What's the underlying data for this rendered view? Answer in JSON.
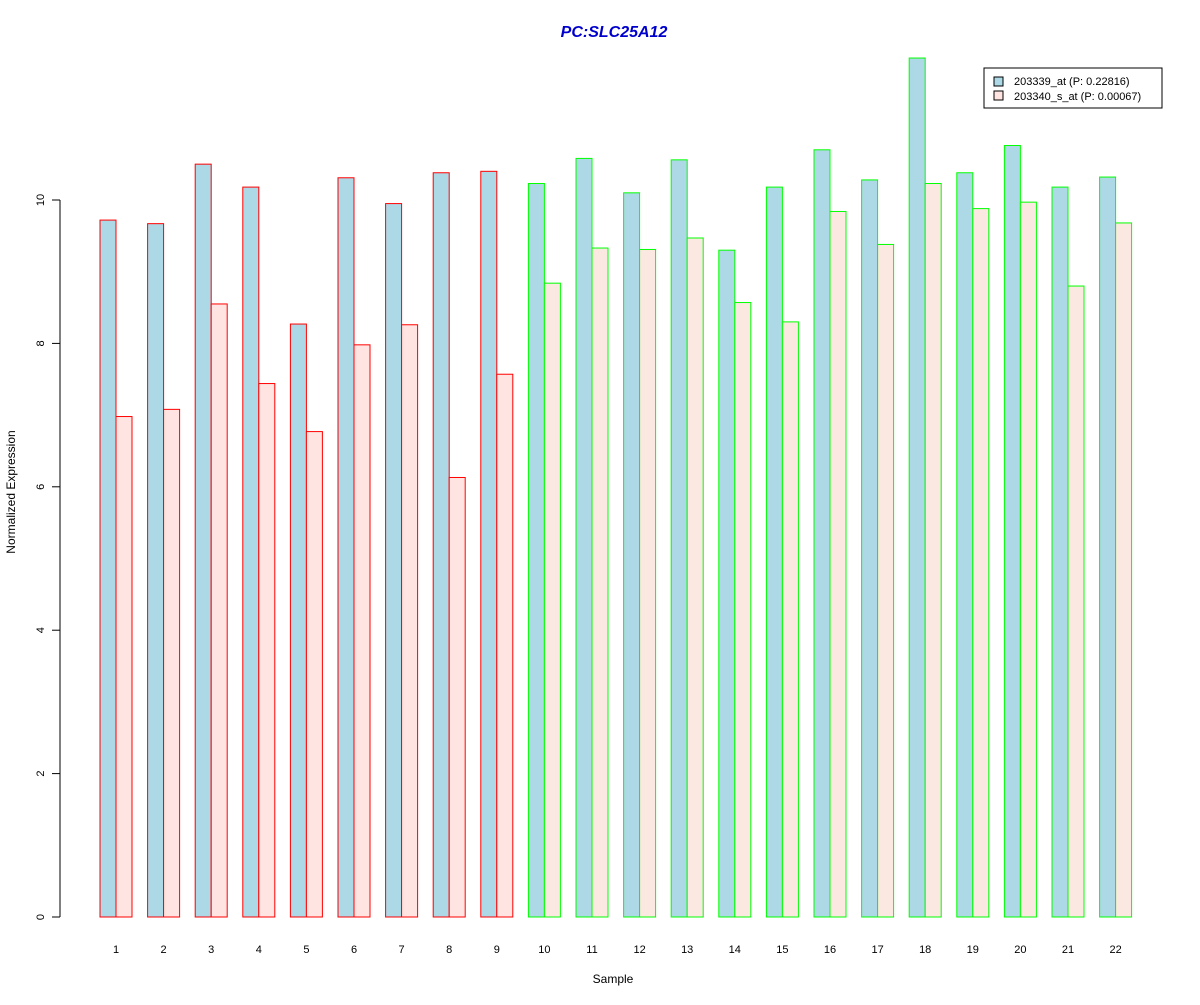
{
  "chart_data": {
    "type": "bar",
    "title": "PC:SLC25A12",
    "xlabel": "Sample",
    "ylabel": "Normalized Expression",
    "ylim": [
      0,
      12
    ],
    "yticks": [
      0,
      2,
      4,
      6,
      8,
      10
    ],
    "categories": [
      "1",
      "2",
      "3",
      "4",
      "5",
      "6",
      "7",
      "8",
      "9",
      "10",
      "11",
      "12",
      "13",
      "14",
      "15",
      "16",
      "17",
      "18",
      "19",
      "20",
      "21",
      "22"
    ],
    "series": [
      {
        "name": "203339_at (P: 0.22816)",
        "fill": "#add8e6",
        "values": [
          9.72,
          9.67,
          10.5,
          10.18,
          8.27,
          10.31,
          9.95,
          10.38,
          10.4,
          10.23,
          10.58,
          10.1,
          10.56,
          9.3,
          10.18,
          10.7,
          10.28,
          11.98,
          10.38,
          10.76,
          10.18,
          10.32
        ]
      },
      {
        "name": "203340_s_at (P: 0.00067)",
        "fill_group1": "#ffe4e1",
        "fill_group2": "#fbe8e0",
        "values": [
          6.98,
          7.08,
          8.55,
          7.44,
          6.77,
          7.98,
          8.26,
          6.13,
          7.57,
          8.84,
          9.33,
          9.31,
          9.47,
          8.57,
          8.3,
          9.84,
          9.38,
          10.23,
          9.88,
          9.97,
          8.8,
          9.68
        ]
      }
    ],
    "group_border_colors": [
      "#ff0000",
      "#ff0000",
      "#ff0000",
      "#ff0000",
      "#ff0000",
      "#ff0000",
      "#ff0000",
      "#ff0000",
      "#ff0000",
      "#00ff00",
      "#00ff00",
      "#00ff00",
      "#00ff00",
      "#00ff00",
      "#00ff00",
      "#00ff00",
      "#00ff00",
      "#00ff00",
      "#00ff00",
      "#00ff00",
      "#00ff00",
      "#00ff00"
    ],
    "title_color": "#0000cd",
    "grid": false,
    "legend_position": "top-right"
  }
}
